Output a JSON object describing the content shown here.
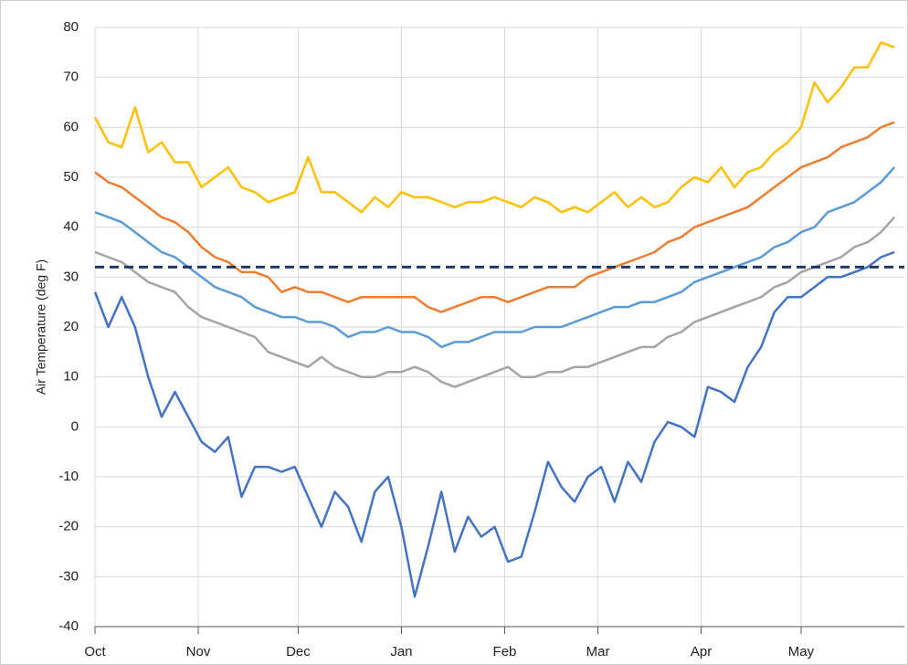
{
  "chart_data": {
    "type": "line",
    "y_label": "Air Temperature (deg F)",
    "x": [
      0,
      4,
      8,
      12,
      16,
      20,
      24,
      28,
      32,
      36,
      40,
      44,
      48,
      52,
      56,
      60,
      64,
      68,
      72,
      76,
      80,
      84,
      88,
      92,
      96,
      100,
      104,
      108,
      112,
      116,
      120,
      124,
      128,
      132,
      136,
      140,
      144,
      148,
      152,
      156,
      160,
      164,
      168,
      172,
      176,
      180,
      184,
      188,
      192,
      196,
      200,
      204,
      208,
      212,
      216,
      220,
      224,
      228,
      232,
      236,
      240
    ],
    "xlim": [
      0,
      243
    ],
    "xticks": [
      {
        "value": 0,
        "label": "Oct"
      },
      {
        "value": 31,
        "label": "Nov"
      },
      {
        "value": 61,
        "label": "Dec"
      },
      {
        "value": 92,
        "label": "Jan"
      },
      {
        "value": 123,
        "label": "Feb"
      },
      {
        "value": 151,
        "label": "Mar"
      },
      {
        "value": 182,
        "label": "Apr"
      },
      {
        "value": 212,
        "label": "May"
      }
    ],
    "ylim": [
      -40,
      80
    ],
    "yticks": [
      -40,
      -30,
      -20,
      -10,
      0,
      10,
      20,
      30,
      40,
      50,
      60,
      70,
      80
    ],
    "grid": true,
    "series": [
      {
        "color": "#FFC000",
        "values": [
          62,
          57,
          56,
          64,
          55,
          57,
          53,
          53,
          48,
          50,
          52,
          48,
          47,
          45,
          46,
          47,
          54,
          47,
          47,
          45,
          43,
          46,
          44,
          47,
          46,
          46,
          45,
          44,
          45,
          45,
          46,
          45,
          44,
          46,
          45,
          43,
          44,
          43,
          45,
          47,
          44,
          46,
          44,
          45,
          48,
          50,
          49,
          52,
          48,
          51,
          52,
          55,
          57,
          60,
          69,
          65,
          68,
          72,
          72,
          77,
          76
        ]
      },
      {
        "color": "#ED7D31",
        "values": [
          51,
          49,
          48,
          46,
          44,
          42,
          41,
          39,
          36,
          34,
          33,
          31,
          31,
          30,
          27,
          28,
          27,
          27,
          26,
          25,
          26,
          26,
          26,
          26,
          26,
          24,
          23,
          24,
          25,
          26,
          26,
          25,
          26,
          27,
          28,
          28,
          28,
          30,
          31,
          32,
          33,
          34,
          35,
          37,
          38,
          40,
          41,
          42,
          43,
          44,
          46,
          48,
          50,
          52,
          53,
          54,
          56,
          57,
          58,
          60,
          61
        ]
      },
      {
        "color": "#5B9BD5",
        "values": [
          43,
          42,
          41,
          39,
          37,
          35,
          34,
          32,
          30,
          28,
          27,
          26,
          24,
          23,
          22,
          22,
          21,
          21,
          20,
          18,
          19,
          19,
          20,
          19,
          19,
          18,
          16,
          17,
          17,
          18,
          19,
          19,
          19,
          20,
          20,
          20,
          21,
          22,
          23,
          24,
          24,
          25,
          25,
          26,
          27,
          29,
          30,
          31,
          32,
          33,
          34,
          36,
          37,
          39,
          40,
          43,
          44,
          45,
          47,
          49,
          52
        ]
      },
      {
        "color": "#A5A5A5",
        "values": [
          35,
          34,
          33,
          31,
          29,
          28,
          27,
          24,
          22,
          21,
          20,
          19,
          18,
          15,
          14,
          13,
          12,
          14,
          12,
          11,
          10,
          10,
          11,
          11,
          12,
          11,
          9,
          8,
          9,
          10,
          11,
          12,
          10,
          10,
          11,
          11,
          12,
          12,
          13,
          14,
          15,
          16,
          16,
          18,
          19,
          21,
          22,
          23,
          24,
          25,
          26,
          28,
          29,
          31,
          32,
          33,
          34,
          36,
          37,
          39,
          42
        ]
      },
      {
        "color": "#4472C4",
        "values": [
          27,
          20,
          26,
          20,
          10,
          2,
          7,
          2,
          -3,
          -5,
          -2,
          -14,
          -8,
          -8,
          -9,
          -8,
          -14,
          -20,
          -13,
          -16,
          -23,
          -13,
          -10,
          -20,
          -34,
          -24,
          -13,
          -25,
          -18,
          -22,
          -20,
          -27,
          -26,
          -17,
          -7,
          -12,
          -15,
          -10,
          -8,
          -15,
          -7,
          -11,
          -3,
          1,
          0,
          -2,
          8,
          7,
          5,
          12,
          16,
          23,
          26,
          26,
          28,
          30,
          30,
          31,
          32,
          34,
          35
        ]
      }
    ],
    "reference_line": {
      "value": 32,
      "color": "#203864"
    }
  }
}
